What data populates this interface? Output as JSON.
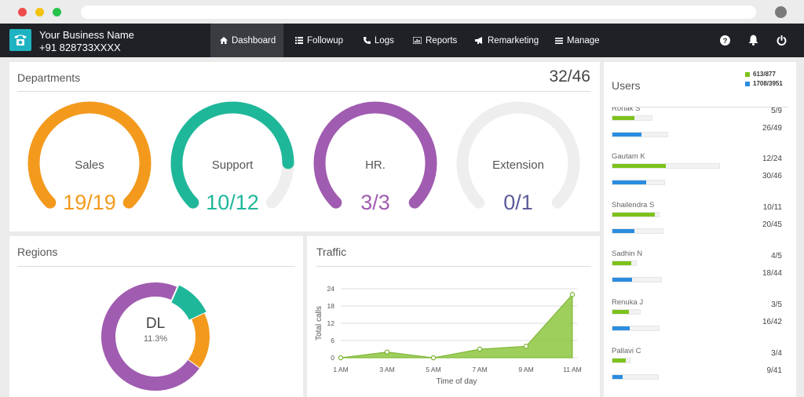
{
  "navbar": {
    "brand_name": "Your Business Name",
    "brand_phone": "+91 828733XXXX",
    "items": [
      {
        "label": "Dashboard",
        "icon": "home-icon",
        "active": true
      },
      {
        "label": "Followup",
        "icon": "list-icon",
        "active": false
      },
      {
        "label": "Logs",
        "icon": "phone-icon",
        "active": false
      },
      {
        "label": "Reports",
        "icon": "chart-icon",
        "active": false
      },
      {
        "label": "Remarketing",
        "icon": "megaphone-icon",
        "active": false
      },
      {
        "label": "Manage",
        "icon": "menu-icon",
        "active": false
      }
    ],
    "right_icons": [
      "help-icon",
      "bell-icon",
      "power-icon"
    ]
  },
  "departments": {
    "title": "Departments",
    "total": "32/46",
    "gauges": [
      {
        "label": "Sales",
        "value": "19/19",
        "fraction": 1.0,
        "color": "#f39a1d"
      },
      {
        "label": "Support",
        "value": "10/12",
        "fraction": 0.833,
        "color": "#1fb79a"
      },
      {
        "label": "HR.",
        "value": "3/3",
        "fraction": 1.0,
        "color": "#a05cb0"
      },
      {
        "label": "Extension",
        "value": "0/1",
        "fraction": 0.0,
        "color": "#5b5b9a"
      }
    ],
    "track_color": "#eeeeee"
  },
  "regions": {
    "title": "Regions",
    "center_label": "DL",
    "center_value": "11.3%",
    "segments": [
      {
        "fraction": 0.113,
        "color": "#1fb79a"
      },
      {
        "fraction": 0.17,
        "color": "#f39a1d"
      },
      {
        "fraction": 0.717,
        "color": "#a05cb0"
      }
    ]
  },
  "traffic": {
    "title": "Traffic",
    "chart_data": {
      "type": "area",
      "x": [
        "1 AM",
        "3 AM",
        "5 AM",
        "7 AM",
        "9 AM",
        "11 AM"
      ],
      "x_hours": [
        1,
        3,
        5,
        7,
        9,
        11
      ],
      "y": [
        0,
        2,
        0,
        3,
        4,
        22
      ],
      "xlabel": "Time of day",
      "ylabel": "Total calls",
      "yticks": [
        0,
        6,
        12,
        18,
        24
      ],
      "ylim": [
        0,
        24
      ],
      "color": "#8dc63f"
    }
  },
  "users": {
    "title": "Users",
    "legend": [
      {
        "label": "613/877",
        "color": "#7cc21b"
      },
      {
        "label": "1708/3951",
        "color": "#2a8de0"
      }
    ],
    "list": [
      {
        "name": "Ronak S",
        "a": "5/9",
        "b": "26/49",
        "fa": 0.556,
        "fb": 0.531
      },
      {
        "name": "Gautam K",
        "a": "12/24",
        "b": "30/46",
        "fa": 0.5,
        "fb": 0.652
      },
      {
        "name": "Shailendra S",
        "a": "10/11",
        "b": "20/45",
        "fa": 0.909,
        "fb": 0.444
      },
      {
        "name": "Sadhin N",
        "a": "4/5",
        "b": "18/44",
        "fa": 0.8,
        "fb": 0.409
      },
      {
        "name": "Renuka J",
        "a": "3/5",
        "b": "16/42",
        "fa": 0.6,
        "fb": 0.381
      },
      {
        "name": "Pallavi C",
        "a": "3/4",
        "b": "9/41",
        "fa": 0.75,
        "fb": 0.22
      }
    ]
  }
}
